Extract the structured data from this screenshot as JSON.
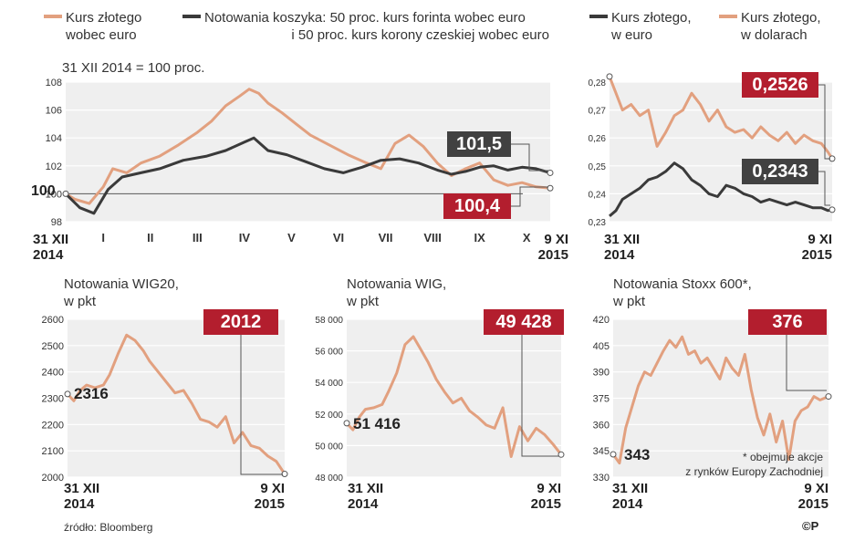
{
  "colors": {
    "zloty": "#e2a07f",
    "basket": "#3a3a3a",
    "red": "#b31e2e",
    "dark": "#414141",
    "grid": "#ffffff",
    "plot_bg": "#efefef"
  },
  "top_left": {
    "legend": [
      {
        "label_l1": "Kurs złotego",
        "label_l2": "wobec euro",
        "color": "#e2a07f"
      },
      {
        "label_l1": "Notowania koszyka: 50 proc. kurs forinta wobec euro",
        "label_l2": "i 50 proc. kurs korony czeskiej wobec euro",
        "color": "#3a3a3a"
      }
    ],
    "subtitle": "31 XII 2014 = 100 proc.",
    "base_label": "100",
    "label_basket": "101,5",
    "label_zloty": "100,4",
    "x_start_l1": "31 XII",
    "x_start_l2": "2014",
    "x_end_l1": "9 XI",
    "x_end_l2": "2015"
  },
  "top_right": {
    "legend": [
      {
        "label_l1": "Kurs złotego,",
        "label_l2": "w euro",
        "color": "#3a3a3a"
      },
      {
        "label_l1": "Kurs złotego,",
        "label_l2": "w dolarach",
        "color": "#e2a07f"
      }
    ],
    "label_usd": "0,2526",
    "label_eur": "0,2343",
    "x_start_l1": "31 XII",
    "x_start_l2": "2014",
    "x_end_l1": "9 XI",
    "x_end_l2": "2015"
  },
  "wig20": {
    "title_l1": "Notowania WIG20,",
    "title_l2": "w pkt",
    "start_label": "2316",
    "end_label": "2012",
    "x_start_l1": "31 XII",
    "x_start_l2": "2014",
    "x_end_l1": "9 XI",
    "x_end_l2": "2015"
  },
  "wig": {
    "title_l1": "Notowania WIG,",
    "title_l2": "w pkt",
    "start_label": "51 416",
    "end_label": "49 428",
    "x_start_l1": "31 XII",
    "x_start_l2": "2014",
    "x_end_l1": "9 XI",
    "x_end_l2": "2015"
  },
  "stoxx": {
    "title_l1": "Notowania Stoxx 600*,",
    "title_l2": "w pkt",
    "start_label": "343",
    "end_label": "376",
    "note_l1": "* obejmuje akcje",
    "note_l2": "z rynków Europy Zachodniej",
    "x_start_l1": "31 XII",
    "x_start_l2": "2014",
    "x_end_l1": "9 XI",
    "x_end_l2": "2015"
  },
  "source": "źródło: Bloomberg",
  "copyright": "©P",
  "chart_data": [
    {
      "type": "line",
      "ylim": [
        98,
        108
      ],
      "yticks": [
        "98",
        "100",
        "102",
        "104",
        "106",
        "108"
      ],
      "months": [
        "I",
        "II",
        "III",
        "IV",
        "V",
        "VI",
        "VII",
        "VIII",
        "IX",
        "X"
      ],
      "x_range": [
        0,
        10.3
      ],
      "series": [
        {
          "name": "Kurs złotego wobec euro",
          "color": "#e2a07f",
          "x": [
            0,
            0.2,
            0.5,
            0.8,
            1.0,
            1.3,
            1.6,
            2.0,
            2.4,
            2.8,
            3.1,
            3.4,
            3.7,
            3.9,
            4.1,
            4.3,
            4.6,
            4.9,
            5.2,
            5.6,
            6.0,
            6.4,
            6.7,
            7.0,
            7.3,
            7.6,
            7.9,
            8.2,
            8.5,
            8.8,
            9.1,
            9.4,
            9.7,
            10.0,
            10.3
          ],
          "y": [
            100,
            99.6,
            99.3,
            100.5,
            101.8,
            101.5,
            102.2,
            102.7,
            103.5,
            104.4,
            105.2,
            106.3,
            107.0,
            107.5,
            107.2,
            106.5,
            105.8,
            105.0,
            104.2,
            103.5,
            102.8,
            102.2,
            101.8,
            103.6,
            104.2,
            103.4,
            102.2,
            101.3,
            101.8,
            102.2,
            101.0,
            100.6,
            100.8,
            100.5,
            100.4
          ]
        },
        {
          "name": "Notowania koszyka: 50 proc. kurs forinta wobec euro i 50 proc. kurs korony czeskiej wobec euro",
          "color": "#3a3a3a",
          "x": [
            0,
            0.3,
            0.6,
            0.9,
            1.2,
            1.6,
            2.0,
            2.5,
            3.0,
            3.4,
            3.8,
            4.0,
            4.3,
            4.7,
            5.1,
            5.5,
            5.9,
            6.3,
            6.7,
            7.1,
            7.5,
            7.9,
            8.2,
            8.5,
            8.8,
            9.1,
            9.4,
            9.7,
            10.0,
            10.3
          ],
          "y": [
            100,
            99.0,
            98.6,
            100.3,
            101.2,
            101.5,
            101.8,
            102.4,
            102.7,
            103.1,
            103.7,
            104.0,
            103.1,
            102.8,
            102.3,
            101.8,
            101.5,
            101.9,
            102.4,
            102.5,
            102.2,
            101.7,
            101.4,
            101.6,
            101.9,
            102.0,
            101.7,
            101.9,
            101.8,
            101.5
          ]
        }
      ]
    },
    {
      "type": "line",
      "ylim": [
        0.23,
        0.28
      ],
      "yticks": [
        "0,23",
        "0,24",
        "0,25",
        "0,26",
        "0,27",
        "0,28"
      ],
      "x_range": [
        0,
        10.3
      ],
      "series": [
        {
          "name": "Kurs złotego, w dolarach",
          "color": "#e2a07f",
          "x": [
            0,
            0.3,
            0.6,
            1.0,
            1.4,
            1.8,
            2.2,
            2.6,
            3.0,
            3.4,
            3.8,
            4.2,
            4.6,
            5.0,
            5.4,
            5.8,
            6.2,
            6.6,
            7.0,
            7.4,
            7.8,
            8.2,
            8.6,
            9.0,
            9.4,
            9.8,
            10.1,
            10.3
          ],
          "y": [
            0.282,
            0.276,
            0.27,
            0.272,
            0.268,
            0.27,
            0.257,
            0.262,
            0.268,
            0.27,
            0.276,
            0.272,
            0.266,
            0.27,
            0.264,
            0.262,
            0.263,
            0.26,
            0.264,
            0.261,
            0.259,
            0.262,
            0.258,
            0.261,
            0.259,
            0.258,
            0.255,
            0.2526
          ]
        },
        {
          "name": "Kurs złotego, w euro",
          "color": "#3a3a3a",
          "x": [
            0,
            0.3,
            0.6,
            1.0,
            1.4,
            1.8,
            2.2,
            2.6,
            3.0,
            3.4,
            3.8,
            4.2,
            4.6,
            5.0,
            5.4,
            5.8,
            6.2,
            6.6,
            7.0,
            7.4,
            7.8,
            8.2,
            8.6,
            9.0,
            9.4,
            9.8,
            10.1,
            10.3
          ],
          "y": [
            0.232,
            0.234,
            0.238,
            0.24,
            0.242,
            0.245,
            0.246,
            0.248,
            0.251,
            0.249,
            0.245,
            0.243,
            0.24,
            0.239,
            0.243,
            0.242,
            0.24,
            0.239,
            0.237,
            0.238,
            0.237,
            0.236,
            0.237,
            0.236,
            0.235,
            0.235,
            0.234,
            0.2343
          ]
        }
      ]
    },
    {
      "type": "line",
      "ylim": [
        2000,
        2600
      ],
      "yticks": [
        "2000",
        "2100",
        "2200",
        "2300",
        "2400",
        "2500",
        "2600"
      ],
      "x_range": [
        0,
        10.3
      ],
      "series": [
        {
          "name": "WIG20",
          "color": "#e2a07f",
          "x": [
            0,
            0.3,
            0.6,
            0.9,
            1.3,
            1.7,
            2.0,
            2.4,
            2.8,
            3.2,
            3.6,
            3.9,
            4.3,
            4.7,
            5.1,
            5.5,
            5.9,
            6.3,
            6.7,
            7.1,
            7.5,
            7.9,
            8.3,
            8.7,
            9.1,
            9.5,
            9.9,
            10.3
          ],
          "y": [
            2316,
            2290,
            2330,
            2350,
            2340,
            2350,
            2390,
            2470,
            2540,
            2520,
            2480,
            2440,
            2400,
            2360,
            2320,
            2330,
            2280,
            2220,
            2210,
            2190,
            2230,
            2130,
            2170,
            2120,
            2110,
            2080,
            2060,
            2012
          ]
        }
      ]
    },
    {
      "type": "line",
      "ylim": [
        48000,
        58000
      ],
      "yticks": [
        "48 000",
        "50 000",
        "52 000",
        "54 000",
        "56 000",
        "58 000"
      ],
      "x_range": [
        0,
        10.3
      ],
      "series": [
        {
          "name": "WIG",
          "color": "#e2a07f",
          "x": [
            0,
            0.3,
            0.6,
            0.9,
            1.3,
            1.7,
            2.0,
            2.4,
            2.8,
            3.2,
            3.6,
            3.9,
            4.3,
            4.7,
            5.1,
            5.5,
            5.9,
            6.3,
            6.7,
            7.1,
            7.5,
            7.9,
            8.3,
            8.7,
            9.1,
            9.5,
            9.9,
            10.3
          ],
          "y": [
            51416,
            51000,
            51800,
            52300,
            52400,
            52600,
            53400,
            54600,
            56400,
            56900,
            56000,
            55300,
            54200,
            53400,
            52700,
            53000,
            52200,
            51800,
            51300,
            51100,
            52400,
            49300,
            51200,
            50300,
            51100,
            50700,
            50100,
            49428
          ]
        }
      ]
    },
    {
      "type": "line",
      "ylim": [
        330,
        420
      ],
      "yticks": [
        "330",
        "345",
        "360",
        "375",
        "390",
        "405",
        "420"
      ],
      "x_range": [
        0,
        10.3
      ],
      "series": [
        {
          "name": "Stoxx 600",
          "color": "#e2a07f",
          "x": [
            0,
            0.3,
            0.6,
            0.9,
            1.2,
            1.5,
            1.8,
            2.1,
            2.4,
            2.7,
            3.0,
            3.3,
            3.6,
            3.9,
            4.2,
            4.5,
            4.8,
            5.1,
            5.4,
            5.7,
            6.0,
            6.3,
            6.6,
            6.9,
            7.2,
            7.5,
            7.8,
            8.1,
            8.4,
            8.7,
            9.0,
            9.3,
            9.6,
            9.9,
            10.3
          ],
          "y": [
            343,
            338,
            358,
            370,
            382,
            390,
            388,
            395,
            402,
            408,
            404,
            410,
            400,
            402,
            395,
            398,
            392,
            386,
            398,
            392,
            388,
            400,
            380,
            364,
            354,
            366,
            350,
            362,
            340,
            362,
            368,
            370,
            376,
            374,
            376
          ]
        }
      ]
    }
  ]
}
